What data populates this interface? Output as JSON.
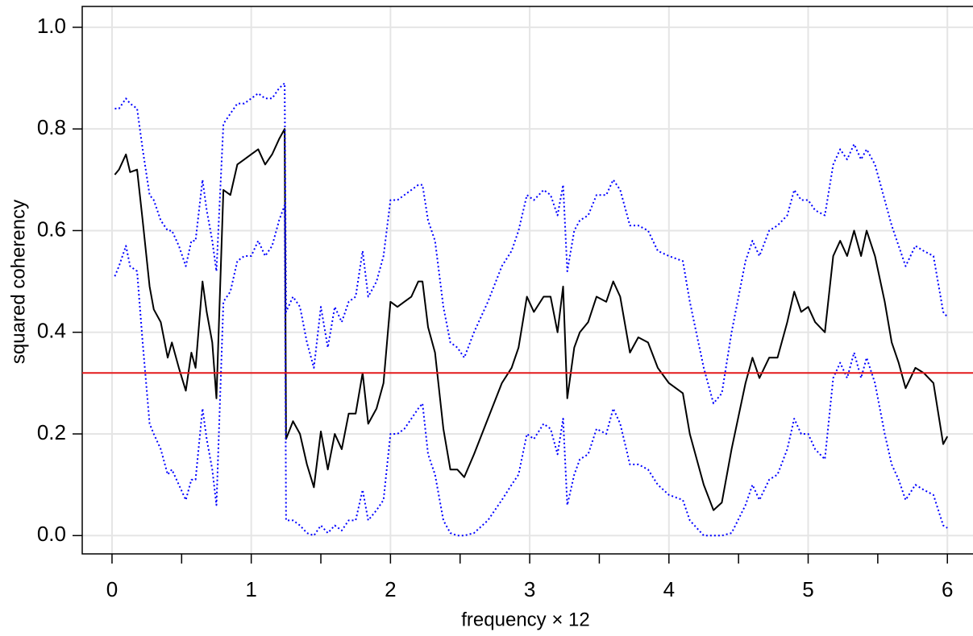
{
  "chart_data": {
    "type": "line",
    "x_label": "frequency × 12",
    "y_label": "squared coherency",
    "xlim": [
      -0.214,
      6.184
    ],
    "ylim": [
      -0.036,
      1.041
    ],
    "xticks": [
      0,
      1,
      2,
      3,
      4,
      5,
      6
    ],
    "xminor_ticks": [
      0.5,
      1.5,
      2.5,
      3.5,
      4.5,
      5.5
    ],
    "yticks": [
      {
        "value": 0,
        "label": "0.0"
      },
      0.2,
      0.4,
      0.6,
      0.8,
      {
        "value": 1,
        "label": "1.0"
      }
    ],
    "grid": true,
    "hline": {
      "value": 0.32,
      "color": "#e31a1c"
    },
    "x": [
      0.02,
      0.05,
      0.1,
      0.13,
      0.18,
      0.22,
      0.27,
      0.3,
      0.35,
      0.4,
      0.43,
      0.48,
      0.53,
      0.57,
      0.6,
      0.65,
      0.68,
      0.72,
      0.75,
      0.8,
      0.85,
      0.9,
      0.95,
      1.0,
      1.05,
      1.1,
      1.15,
      1.2,
      1.24,
      1.25,
      1.3,
      1.35,
      1.4,
      1.45,
      1.5,
      1.55,
      1.6,
      1.65,
      1.7,
      1.75,
      1.8,
      1.84,
      1.9,
      1.95,
      2.0,
      2.05,
      2.1,
      2.15,
      2.2,
      2.23,
      2.27,
      2.32,
      2.38,
      2.43,
      2.48,
      2.53,
      2.6,
      2.7,
      2.8,
      2.87,
      2.92,
      2.98,
      3.03,
      3.1,
      3.15,
      3.2,
      3.24,
      3.27,
      3.32,
      3.36,
      3.42,
      3.48,
      3.55,
      3.6,
      3.65,
      3.72,
      3.78,
      3.85,
      3.92,
      4.0,
      4.1,
      4.15,
      4.25,
      4.32,
      4.38,
      4.45,
      4.55,
      4.6,
      4.65,
      4.72,
      4.78,
      4.85,
      4.9,
      4.95,
      5.0,
      5.05,
      5.12,
      5.18,
      5.23,
      5.28,
      5.33,
      5.38,
      5.42,
      5.48,
      5.55,
      5.6,
      5.65,
      5.7,
      5.77,
      5.83,
      5.9,
      5.97,
      6.0
    ],
    "series": [
      {
        "color": "#000000",
        "line_style": "solid",
        "values": [
          0.71,
          0.72,
          0.75,
          0.715,
          0.72,
          0.62,
          0.49,
          0.445,
          0.42,
          0.35,
          0.38,
          0.33,
          0.285,
          0.36,
          0.33,
          0.5,
          0.44,
          0.38,
          0.27,
          0.68,
          0.67,
          0.73,
          0.74,
          0.75,
          0.76,
          0.73,
          0.75,
          0.78,
          0.8,
          0.19,
          0.225,
          0.2,
          0.14,
          0.095,
          0.205,
          0.13,
          0.2,
          0.17,
          0.24,
          0.24,
          0.32,
          0.22,
          0.25,
          0.3,
          0.46,
          0.45,
          0.46,
          0.47,
          0.5,
          0.5,
          0.41,
          0.36,
          0.21,
          0.13,
          0.13,
          0.115,
          0.16,
          0.23,
          0.3,
          0.33,
          0.37,
          0.47,
          0.44,
          0.47,
          0.47,
          0.4,
          0.49,
          0.27,
          0.37,
          0.4,
          0.42,
          0.47,
          0.46,
          0.5,
          0.47,
          0.36,
          0.39,
          0.38,
          0.33,
          0.3,
          0.28,
          0.2,
          0.1,
          0.05,
          0.065,
          0.17,
          0.3,
          0.35,
          0.31,
          0.35,
          0.35,
          0.42,
          0.48,
          0.44,
          0.45,
          0.42,
          0.4,
          0.55,
          0.58,
          0.55,
          0.6,
          0.55,
          0.6,
          0.55,
          0.46,
          0.38,
          0.34,
          0.29,
          0.33,
          0.32,
          0.3,
          0.18,
          0.195
        ]
      },
      {
        "color": "#0000ff",
        "line_style": "dotted",
        "values": [
          0.84,
          0.84,
          0.86,
          0.85,
          0.84,
          0.76,
          0.67,
          0.66,
          0.62,
          0.6,
          0.6,
          0.57,
          0.53,
          0.58,
          0.58,
          0.7,
          0.64,
          0.58,
          0.52,
          0.81,
          0.83,
          0.85,
          0.85,
          0.86,
          0.87,
          0.86,
          0.86,
          0.88,
          0.89,
          0.44,
          0.47,
          0.45,
          0.38,
          0.33,
          0.45,
          0.37,
          0.45,
          0.42,
          0.46,
          0.47,
          0.56,
          0.47,
          0.5,
          0.55,
          0.66,
          0.66,
          0.67,
          0.68,
          0.69,
          0.69,
          0.62,
          0.58,
          0.45,
          0.38,
          0.37,
          0.35,
          0.4,
          0.46,
          0.53,
          0.56,
          0.6,
          0.67,
          0.66,
          0.68,
          0.67,
          0.63,
          0.69,
          0.52,
          0.6,
          0.62,
          0.63,
          0.67,
          0.67,
          0.7,
          0.68,
          0.61,
          0.61,
          0.6,
          0.56,
          0.55,
          0.54,
          0.46,
          0.33,
          0.26,
          0.28,
          0.4,
          0.54,
          0.58,
          0.55,
          0.6,
          0.61,
          0.63,
          0.68,
          0.66,
          0.66,
          0.64,
          0.63,
          0.73,
          0.76,
          0.74,
          0.77,
          0.74,
          0.76,
          0.73,
          0.66,
          0.61,
          0.57,
          0.53,
          0.57,
          0.56,
          0.55,
          0.44,
          0.43
        ]
      },
      {
        "color": "#0000ff",
        "line_style": "dotted",
        "values": [
          0.51,
          0.53,
          0.57,
          0.53,
          0.52,
          0.38,
          0.22,
          0.2,
          0.17,
          0.12,
          0.13,
          0.1,
          0.07,
          0.11,
          0.11,
          0.25,
          0.19,
          0.13,
          0.06,
          0.46,
          0.48,
          0.54,
          0.55,
          0.55,
          0.58,
          0.55,
          0.57,
          0.62,
          0.65,
          0.03,
          0.03,
          0.02,
          0.005,
          0.0,
          0.02,
          0.005,
          0.02,
          0.01,
          0.03,
          0.03,
          0.09,
          0.03,
          0.05,
          0.07,
          0.2,
          0.2,
          0.21,
          0.23,
          0.25,
          0.26,
          0.16,
          0.12,
          0.03,
          0.005,
          0.0,
          0.0,
          0.005,
          0.03,
          0.07,
          0.1,
          0.12,
          0.2,
          0.19,
          0.22,
          0.21,
          0.16,
          0.23,
          0.06,
          0.12,
          0.15,
          0.16,
          0.21,
          0.2,
          0.25,
          0.22,
          0.14,
          0.14,
          0.13,
          0.1,
          0.08,
          0.07,
          0.03,
          0.0,
          0.0,
          0.0,
          0.005,
          0.06,
          0.1,
          0.07,
          0.11,
          0.12,
          0.17,
          0.23,
          0.2,
          0.2,
          0.17,
          0.15,
          0.31,
          0.34,
          0.31,
          0.36,
          0.31,
          0.35,
          0.3,
          0.2,
          0.14,
          0.11,
          0.07,
          0.1,
          0.09,
          0.08,
          0.02,
          0.015
        ]
      }
    ]
  }
}
